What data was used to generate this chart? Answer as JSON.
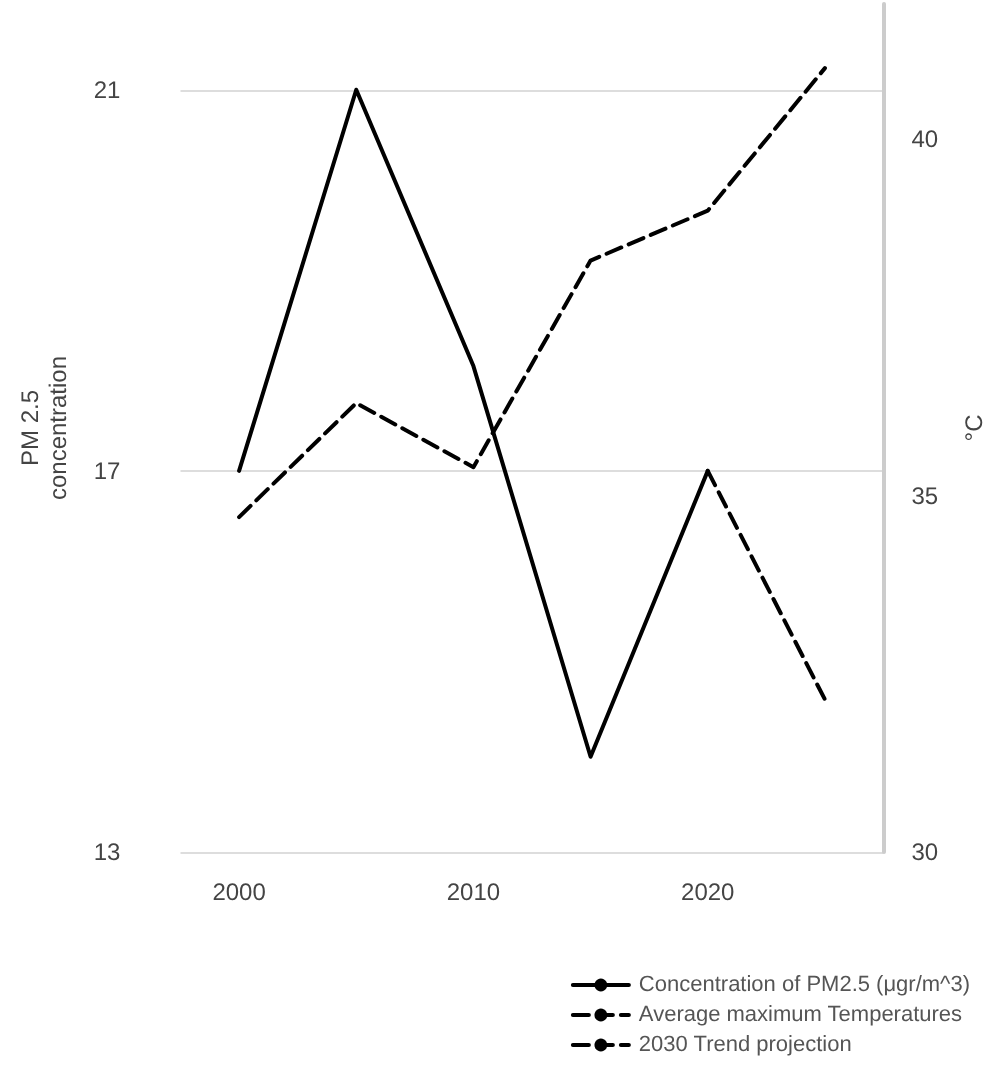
{
  "chart_data": {
    "type": "line",
    "xlabel": null,
    "ylabel": "PM 2.5\nconcentration",
    "y2label": "°C",
    "xlim": [
      1997.5,
      2027.5
    ],
    "xticks": [
      2000,
      2010,
      2020
    ],
    "ylim": [
      13,
      21.9
    ],
    "yticks": [
      13,
      17,
      21
    ],
    "y2lim": [
      30,
      41.9
    ],
    "y2ticks": [
      30,
      35,
      40
    ],
    "series": [
      {
        "name": "Concentration of PM2.5 (μgr/m^3)",
        "color": "#000000",
        "line_style": "solid",
        "x": [
          2000,
          2005,
          2010,
          2015,
          2020
        ],
        "values": [
          17,
          21,
          18.1,
          14.0,
          17
        ]
      },
      {
        "name": "Average maximum Temperatures",
        "color": "#000000",
        "line_style": "dashed",
        "axis": "y2",
        "x": [
          2000,
          2005,
          2010,
          2015,
          2020,
          2025
        ],
        "values": [
          34.7,
          36.3,
          35.4,
          38.3,
          39.0,
          41.0
        ]
      },
      {
        "name": "2030 Trend projection",
        "color": "#000000",
        "line_style": "dashed",
        "x": [
          2020,
          2025
        ],
        "values": [
          17,
          14.6
        ]
      }
    ],
    "grid": "y",
    "legend": "bottom right",
    "marker": "none"
  }
}
